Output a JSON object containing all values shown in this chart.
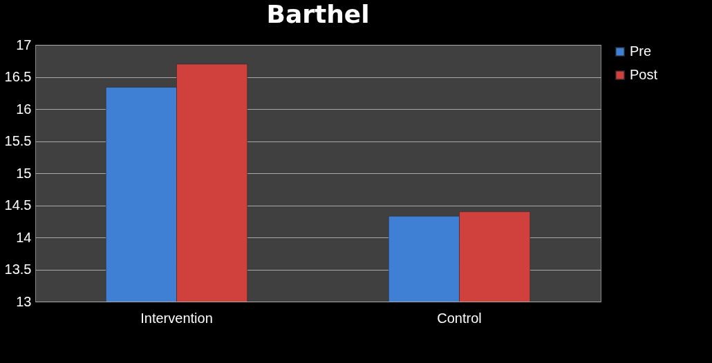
{
  "chart_data": {
    "type": "bar",
    "title": "Barthel",
    "categories": [
      "Intervention",
      "Control"
    ],
    "series": [
      {
        "name": "Pre",
        "color": "#3f7fd4",
        "values": [
          16.34,
          14.33
        ]
      },
      {
        "name": "Post",
        "color": "#d0403c",
        "values": [
          16.7,
          14.4
        ]
      }
    ],
    "ylim": [
      13,
      17
    ],
    "yticks": [
      13,
      13.5,
      14,
      14.5,
      15,
      15.5,
      16,
      16.5,
      17
    ],
    "grid": "y",
    "legend": "right"
  }
}
